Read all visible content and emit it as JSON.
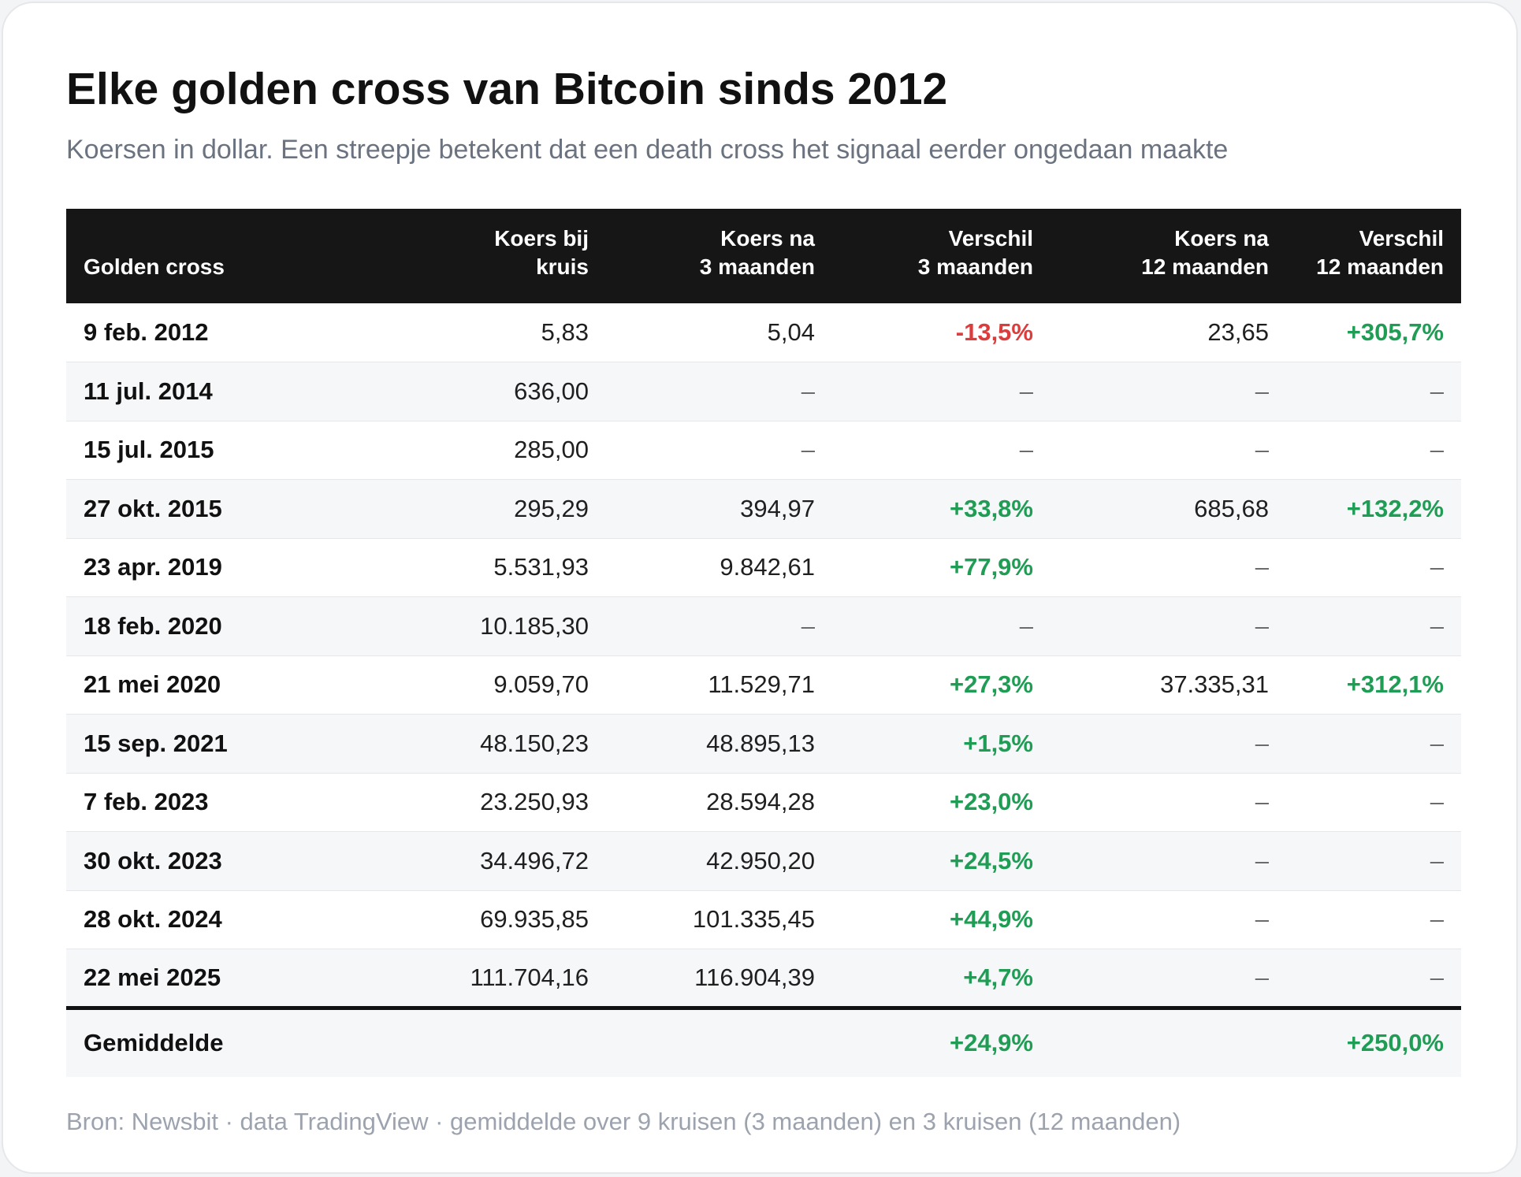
{
  "title": "Elke golden cross van Bitcoin sinds 2012",
  "subtitle": "Koersen in dollar. Een streepje betekent dat een death cross het signaal eerder ongedaan maakte",
  "source": "Bron: Newsbit · data TradingView · gemiddelde over 9 kruisen (3 maanden) en 3 kruisen (12 maanden)",
  "colors": {
    "positive": "#1f9d55",
    "negative": "#dc3c3c",
    "header_bg": "#161616"
  },
  "chart_data": {
    "type": "table",
    "columns": [
      [
        "Golden cross"
      ],
      [
        "Koers bij",
        "kruis"
      ],
      [
        "Koers na",
        "3 maanden"
      ],
      [
        "Verschil",
        "3 maanden"
      ],
      [
        "Koers na",
        "12 maanden"
      ],
      [
        "Verschil",
        "12 maanden"
      ]
    ],
    "rows": [
      [
        "9 feb. 2012",
        "5,83",
        "5,04",
        "-13,5%",
        "23,65",
        "+305,7%"
      ],
      [
        "11 jul. 2014",
        "636,00",
        "–",
        "–",
        "–",
        "–"
      ],
      [
        "15 jul. 2015",
        "285,00",
        "–",
        "–",
        "–",
        "–"
      ],
      [
        "27 okt. 2015",
        "295,29",
        "394,97",
        "+33,8%",
        "685,68",
        "+132,2%"
      ],
      [
        "23 apr. 2019",
        "5.531,93",
        "9.842,61",
        "+77,9%",
        "–",
        "–"
      ],
      [
        "18 feb. 2020",
        "10.185,30",
        "–",
        "–",
        "–",
        "–"
      ],
      [
        "21 mei 2020",
        "9.059,70",
        "11.529,71",
        "+27,3%",
        "37.335,31",
        "+312,1%"
      ],
      [
        "15 sep. 2021",
        "48.150,23",
        "48.895,13",
        "+1,5%",
        "–",
        "–"
      ],
      [
        "7 feb. 2023",
        "23.250,93",
        "28.594,28",
        "+23,0%",
        "–",
        "–"
      ],
      [
        "30 okt. 2023",
        "34.496,72",
        "42.950,20",
        "+24,5%",
        "–",
        "–"
      ],
      [
        "28 okt. 2024",
        "69.935,85",
        "101.335,45",
        "+44,9%",
        "–",
        "–"
      ],
      [
        "22 mei 2025",
        "111.704,16",
        "116.904,39",
        "+4,7%",
        "–",
        "–"
      ]
    ],
    "footer": [
      "Gemiddelde",
      "",
      "",
      "+24,9%",
      "",
      "+250,0%"
    ]
  }
}
